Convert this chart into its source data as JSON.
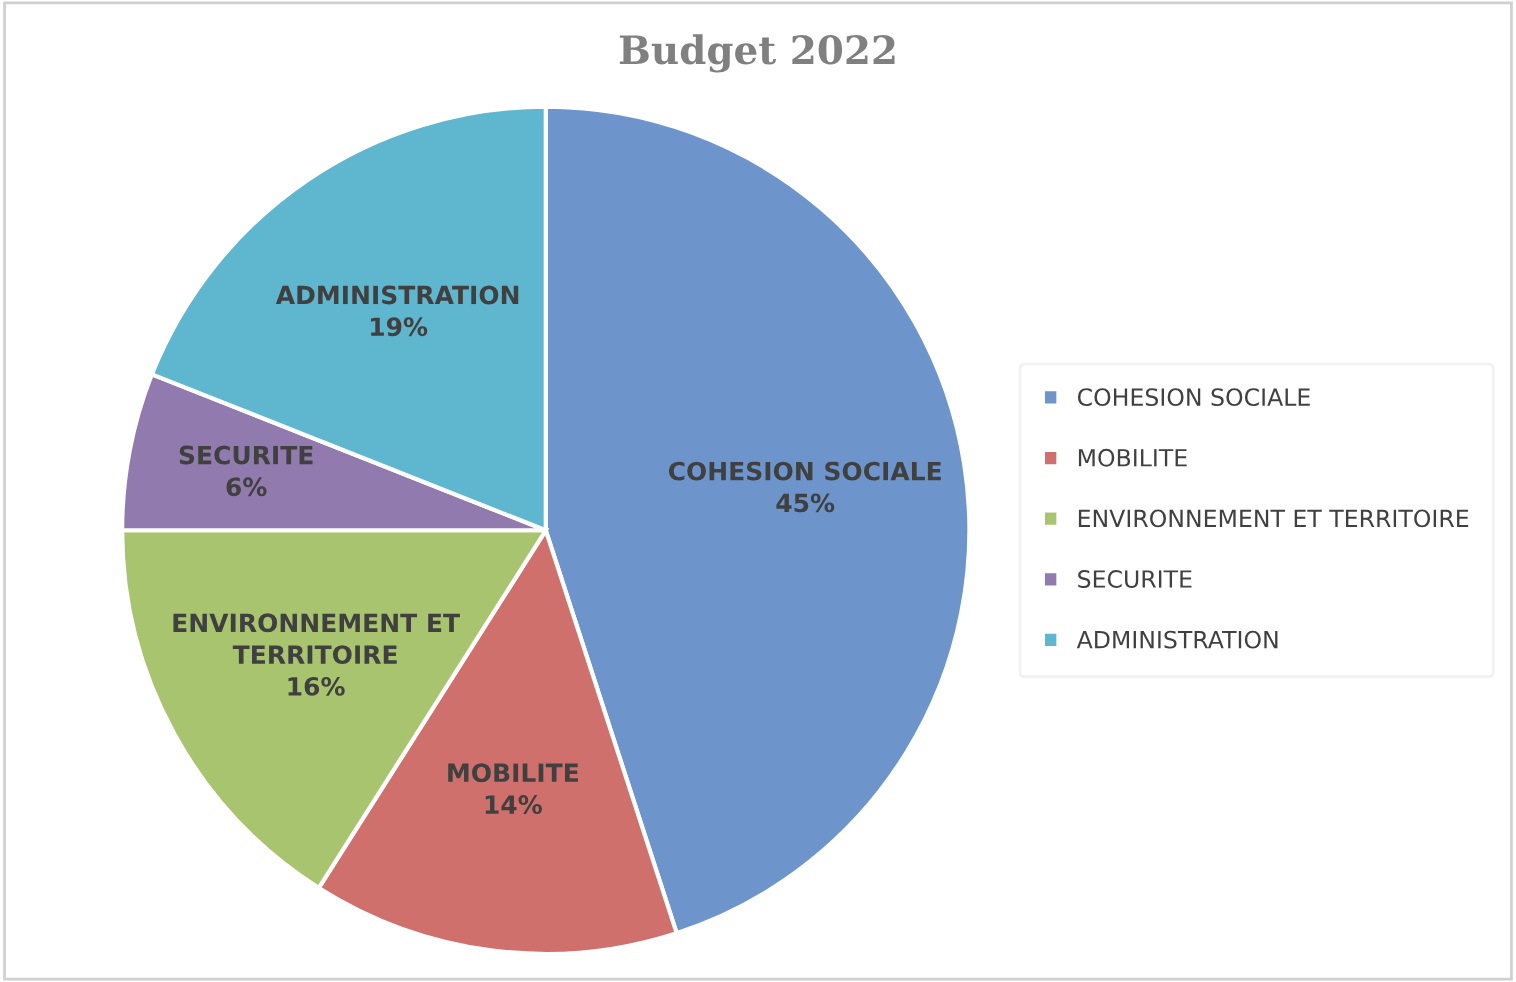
{
  "chart_data": {
    "type": "pie",
    "title": "Budget 2022",
    "categories": [
      "COHESION SOCIALE",
      "MOBILITE",
      "ENVIRONNEMENT ET TERRITOIRE",
      "SECURITE",
      "ADMINISTRATION"
    ],
    "values": [
      45,
      14,
      16,
      6,
      19
    ],
    "value_labels": [
      "45%",
      "14%",
      "16%",
      "6%",
      "19%"
    ],
    "colors": [
      "#6d95cc",
      "#d0706c",
      "#a9c46e",
      "#917aad",
      "#5fb6cf"
    ],
    "legend": "right"
  }
}
